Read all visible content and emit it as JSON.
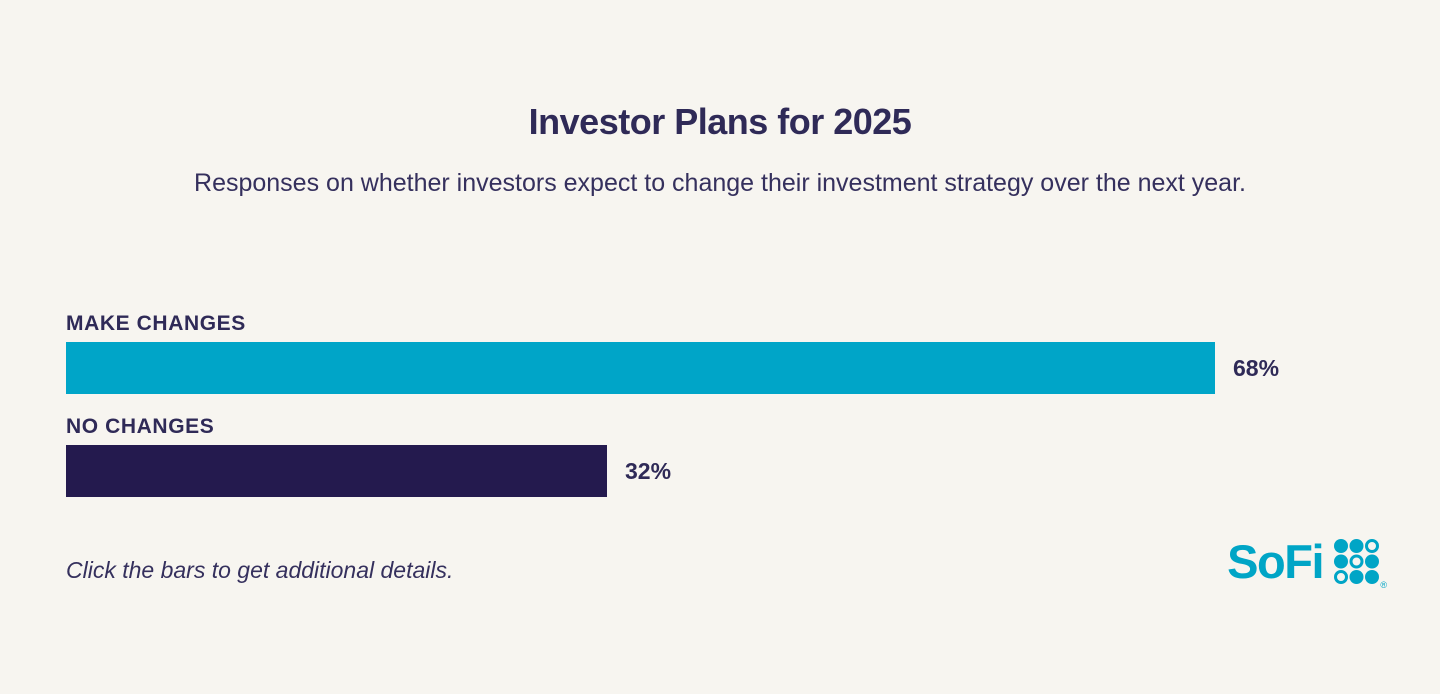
{
  "page": {
    "background": "#f7f5f0",
    "text_color": "#2f2a57"
  },
  "chart_data": {
    "type": "bar",
    "orientation": "horizontal",
    "title": "Investor Plans for 2025",
    "subtitle": "Responses on whether investors expect to change their investment strategy over the next year.",
    "categories": [
      "MAKE CHANGES",
      "NO CHANGES"
    ],
    "values": [
      68,
      32
    ],
    "value_labels": [
      "68%",
      "32%"
    ],
    "bar_colors": [
      "#00a5c8",
      "#241a4e"
    ],
    "xlim": [
      0,
      100
    ],
    "grid": false,
    "legend": false,
    "value_label_position": "right-of-bar",
    "category_label_position": "above-bar"
  },
  "footnote": "Click the bars to get additional details.",
  "logo": {
    "wordmark": "SoFi",
    "color": "#00a5c6",
    "dot_grid": [
      [
        1,
        1,
        0
      ],
      [
        1,
        0,
        1
      ],
      [
        0,
        1,
        1
      ]
    ],
    "registered_mark": "®"
  }
}
